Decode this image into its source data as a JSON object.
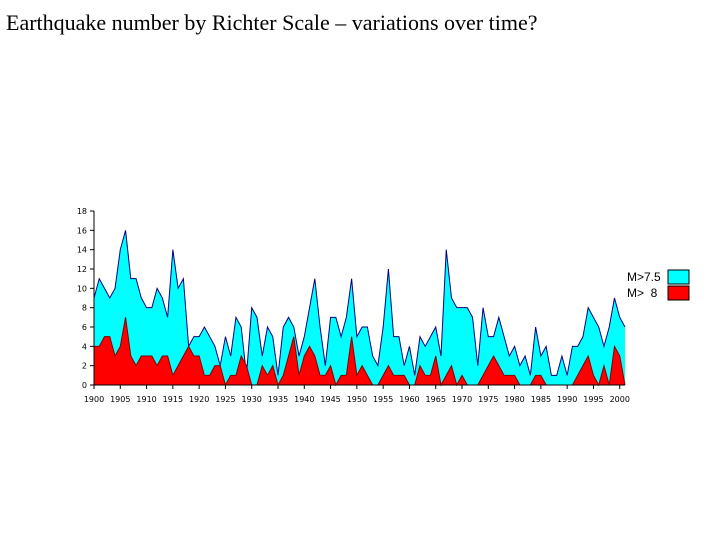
{
  "slide": {
    "title": "Earthquake number by Richter Scale – variations over time?"
  },
  "chart_data": {
    "type": "area",
    "title": "",
    "xlabel": "",
    "ylabel": "",
    "xlim": [
      1900,
      2001
    ],
    "ylim": [
      0,
      18
    ],
    "yticks": [
      0,
      2,
      4,
      6,
      8,
      10,
      12,
      14,
      16,
      18
    ],
    "xticks": [
      1900,
      1905,
      1910,
      1915,
      1920,
      1925,
      1930,
      1935,
      1940,
      1945,
      1950,
      1955,
      1960,
      1965,
      1970,
      1975,
      1980,
      1985,
      1990,
      1995,
      2000
    ],
    "grid": false,
    "legend_position": "right",
    "x": [
      1900,
      1901,
      1902,
      1903,
      1904,
      1905,
      1906,
      1907,
      1908,
      1909,
      1910,
      1911,
      1912,
      1913,
      1914,
      1915,
      1916,
      1917,
      1918,
      1919,
      1920,
      1921,
      1922,
      1923,
      1924,
      1925,
      1926,
      1927,
      1928,
      1929,
      1930,
      1931,
      1932,
      1933,
      1934,
      1935,
      1936,
      1937,
      1938,
      1939,
      1940,
      1941,
      1942,
      1943,
      1944,
      1945,
      1946,
      1947,
      1948,
      1949,
      1950,
      1951,
      1952,
      1953,
      1954,
      1955,
      1956,
      1957,
      1958,
      1959,
      1960,
      1961,
      1962,
      1963,
      1964,
      1965,
      1966,
      1967,
      1968,
      1969,
      1970,
      1971,
      1972,
      1973,
      1974,
      1975,
      1976,
      1977,
      1978,
      1979,
      1980,
      1981,
      1982,
      1983,
      1984,
      1985,
      1986,
      1987,
      1988,
      1989,
      1990,
      1991,
      1992,
      1993,
      1994,
      1995,
      1996,
      1997,
      1998,
      1999,
      2000,
      2001
    ],
    "series": [
      {
        "name": "M>7.5",
        "color": "#00ffff",
        "values": [
          9,
          11,
          10,
          9,
          10,
          14,
          16,
          11,
          11,
          9,
          8,
          8,
          10,
          9,
          7,
          14,
          10,
          11,
          4,
          5,
          5,
          6,
          5,
          4,
          2,
          5,
          3,
          7,
          6,
          1,
          8,
          7,
          3,
          6,
          5,
          1,
          6,
          7,
          6,
          3,
          5,
          8,
          11,
          6,
          2,
          7,
          7,
          5,
          7,
          11,
          5,
          6,
          6,
          3,
          2,
          6,
          12,
          5,
          5,
          2,
          4,
          1,
          5,
          4,
          5,
          6,
          3,
          14,
          9,
          8,
          8,
          8,
          7,
          2,
          8,
          5,
          5,
          7,
          5,
          3,
          4,
          2,
          3,
          1,
          6,
          3,
          4,
          1,
          1,
          3,
          1,
          4,
          4,
          5,
          8,
          7,
          6,
          4,
          6,
          9,
          7,
          6
        ]
      },
      {
        "name": "M>  8",
        "color": "#ff0000",
        "values": [
          4,
          4,
          5,
          5,
          3,
          4,
          7,
          3,
          2,
          3,
          3,
          3,
          2,
          3,
          3,
          1,
          2,
          3,
          4,
          3,
          3,
          1,
          1,
          2,
          2,
          0,
          1,
          1,
          3,
          2,
          0,
          0,
          2,
          1,
          2,
          0,
          1,
          3,
          5,
          1,
          3,
          4,
          3,
          1,
          1,
          2,
          0,
          1,
          1,
          5,
          1,
          2,
          1,
          0,
          0,
          1,
          2,
          1,
          1,
          1,
          0,
          0,
          2,
          1,
          1,
          3,
          0,
          1,
          2,
          0,
          1,
          0,
          0,
          0,
          1,
          2,
          3,
          2,
          1,
          1,
          1,
          0,
          0,
          0,
          1,
          1,
          0,
          0,
          0,
          0,
          0,
          0,
          1,
          2,
          3,
          1,
          0,
          2,
          0,
          4,
          3,
          0
        ]
      }
    ]
  }
}
